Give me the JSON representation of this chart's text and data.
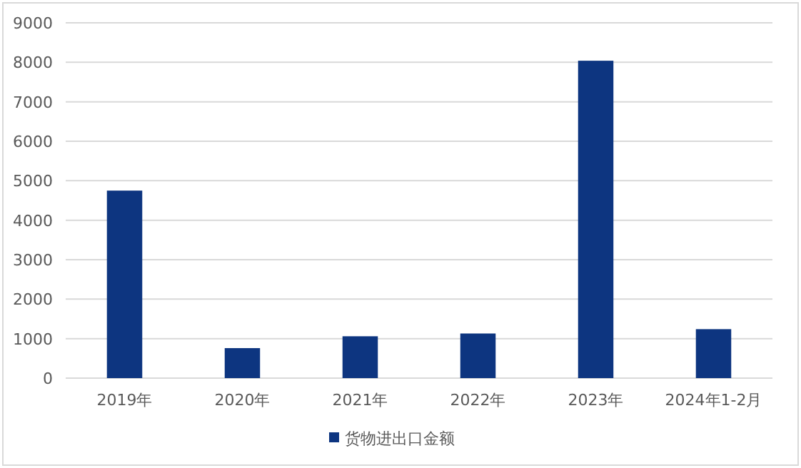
{
  "chart_data": {
    "type": "bar",
    "categories": [
      "2019年",
      "2020年",
      "2021年",
      "2022年",
      "2023年",
      "2024年1-2月"
    ],
    "series": [
      {
        "name": "货物进出口金额",
        "color": "#0d3580",
        "values": [
          4750,
          760,
          1060,
          1130,
          8040,
          1240
        ]
      }
    ],
    "ylim": [
      0,
      9000
    ],
    "yticks": [
      0,
      1000,
      2000,
      3000,
      4000,
      5000,
      6000,
      7000,
      8000,
      9000
    ],
    "grid": "y",
    "legend": "bottom"
  }
}
